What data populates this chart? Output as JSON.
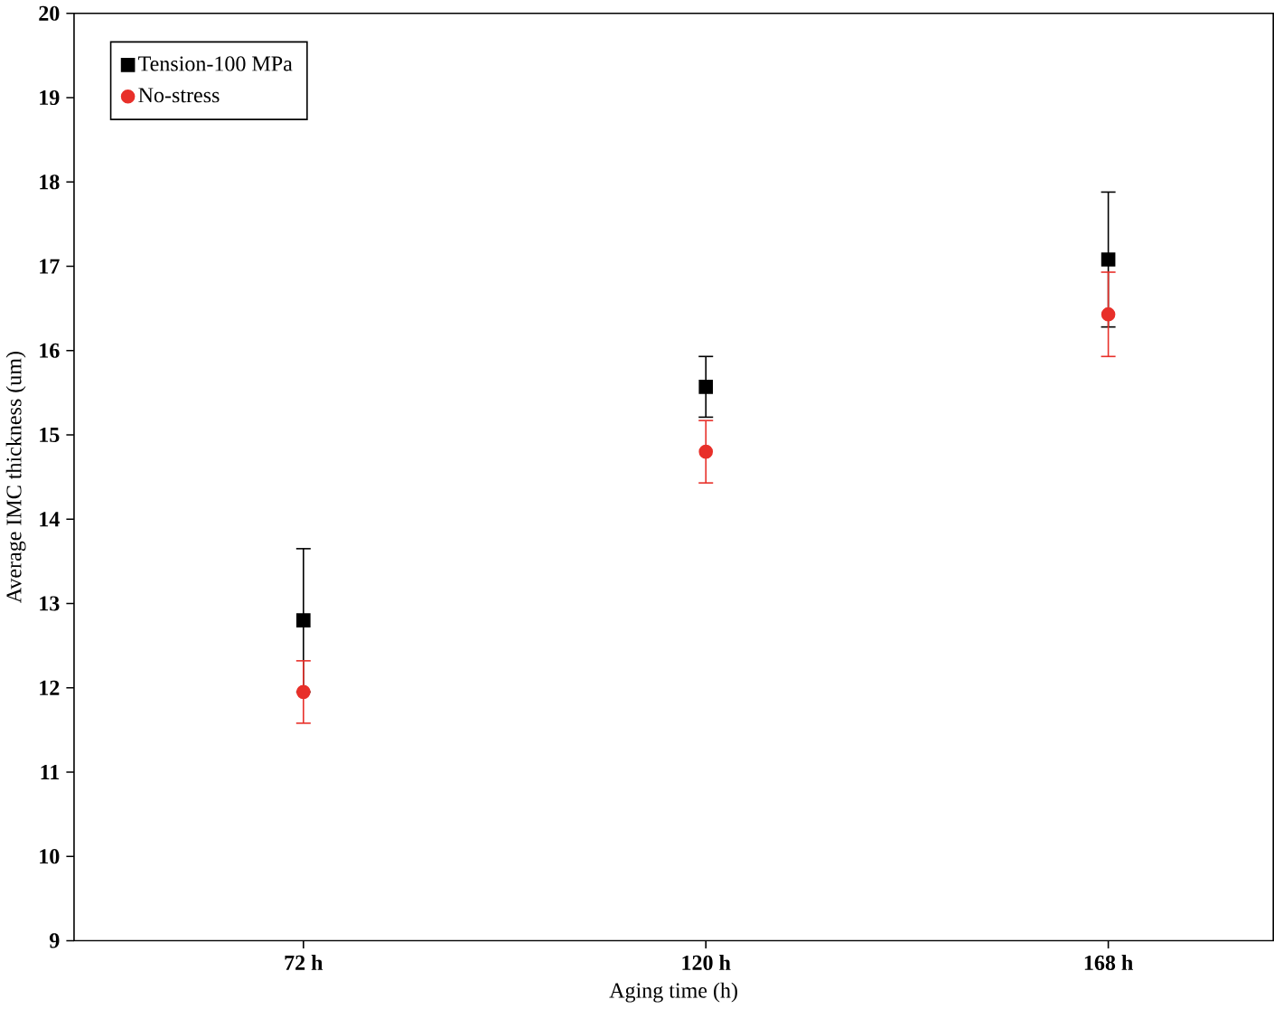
{
  "chart_data": {
    "type": "scatter",
    "xlabel": "Aging time (h)",
    "ylabel": "Average IMC thickness (um)",
    "categories": [
      "72 h",
      "120 h",
      "168 h"
    ],
    "series": [
      {
        "name": "Tension-100 MPa",
        "color": "#000000",
        "marker": "square",
        "values": [
          12.8,
          15.57,
          17.08
        ],
        "errors": [
          0.85,
          0.36,
          0.8
        ]
      },
      {
        "name": "No-stress",
        "color": "#e8302a",
        "marker": "circle",
        "values": [
          11.95,
          14.8,
          16.43
        ],
        "errors": [
          0.37,
          0.37,
          0.5
        ]
      }
    ],
    "ylim": [
      9,
      20
    ],
    "yticks": [
      9,
      10,
      11,
      12,
      13,
      14,
      15,
      16,
      17,
      18,
      19,
      20
    ],
    "grid": false,
    "legend": "top left"
  }
}
